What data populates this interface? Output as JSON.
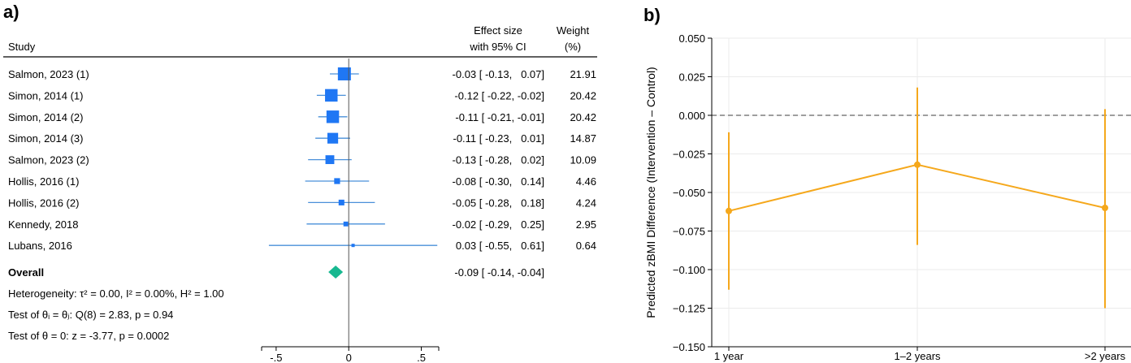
{
  "chart_data": [
    {
      "type": "forest",
      "panel_label": "a)",
      "headers": {
        "study": "Study",
        "effect_line1": "Effect size",
        "effect_line2": "with 95% CI",
        "weight_line1": "Weight",
        "weight_line2": "(%)"
      },
      "studies": [
        {
          "label": "Salmon, 2023 (1)",
          "es": -0.03,
          "lo": -0.13,
          "hi": 0.07,
          "weight": 21.91,
          "es_text": "-0.03 [ -0.13,   0.07]",
          "weight_text": "21.91"
        },
        {
          "label": "Simon, 2014 (1)",
          "es": -0.12,
          "lo": -0.22,
          "hi": -0.02,
          "weight": 20.42,
          "es_text": "-0.12 [ -0.22, -0.02]",
          "weight_text": "20.42"
        },
        {
          "label": "Simon, 2014 (2)",
          "es": -0.11,
          "lo": -0.21,
          "hi": -0.01,
          "weight": 20.42,
          "es_text": "-0.11 [ -0.21, -0.01]",
          "weight_text": "20.42"
        },
        {
          "label": "Simon, 2014 (3)",
          "es": -0.11,
          "lo": -0.23,
          "hi": 0.01,
          "weight": 14.87,
          "es_text": "-0.11 [ -0.23,   0.01]",
          "weight_text": "14.87"
        },
        {
          "label": "Salmon, 2023 (2)",
          "es": -0.13,
          "lo": -0.28,
          "hi": 0.02,
          "weight": 10.09,
          "es_text": "-0.13 [ -0.28,   0.02]",
          "weight_text": "10.09"
        },
        {
          "label": "Hollis, 2016 (1)",
          "es": -0.08,
          "lo": -0.3,
          "hi": 0.14,
          "weight": 4.46,
          "es_text": "-0.08 [ -0.30,   0.14]",
          "weight_text": "4.46"
        },
        {
          "label": "Hollis, 2016 (2)",
          "es": -0.05,
          "lo": -0.28,
          "hi": 0.18,
          "weight": 4.24,
          "es_text": "-0.05 [ -0.28,   0.18]",
          "weight_text": "4.24"
        },
        {
          "label": "Kennedy, 2018",
          "es": -0.02,
          "lo": -0.29,
          "hi": 0.25,
          "weight": 2.95,
          "es_text": "-0.02 [ -0.29,   0.25]",
          "weight_text": "2.95"
        },
        {
          "label": "Lubans, 2016",
          "es": 0.03,
          "lo": -0.55,
          "hi": 0.61,
          "weight": 0.64,
          "es_text": "0.03 [ -0.55,   0.61]",
          "weight_text": "0.64"
        }
      ],
      "overall": {
        "label": "Overall",
        "es": -0.09,
        "lo": -0.14,
        "hi": -0.04,
        "es_text": "-0.09 [ -0.14, -0.04]"
      },
      "notes": {
        "heterogeneity": "Heterogeneity: τ² = 0.00, I² = 0.00%, H² = 1.00",
        "test_equal": "Test of θᵢ = θⱼ: Q(8) = 2.83, p = 0.94",
        "test_zero": "Test of θ = 0: z = -3.77, p = 0.0002"
      },
      "xlim": [
        -0.6,
        0.62
      ],
      "xticks": [
        -0.5,
        0,
        0.5
      ],
      "xtick_labels": [
        "-.5",
        "0",
        ".5"
      ],
      "colors": {
        "study": "#1f77f4",
        "ci_line": "#4a90d9",
        "overall": "#17b890",
        "axis": "#000000"
      }
    },
    {
      "type": "line",
      "panel_label": "b)",
      "categories": [
        "1 year",
        "1–2 years",
        ">2 years"
      ],
      "values": [
        -0.062,
        -0.032,
        -0.06
      ],
      "ci_low": [
        -0.113,
        -0.084,
        -0.125
      ],
      "ci_high": [
        -0.011,
        0.018,
        0.004
      ],
      "ylabel": "Predicted zBMI Difference (Intervention – Control)",
      "xlabel": "",
      "ylim": [
        -0.15,
        0.05
      ],
      "yticks": [
        -0.15,
        -0.125,
        -0.1,
        -0.075,
        -0.05,
        -0.025,
        0.0,
        0.025,
        0.05
      ],
      "ytick_labels": [
        "−0.150",
        "−0.125",
        "−0.100",
        "−0.075",
        "−0.050",
        "−0.025",
        "0.000",
        "0.025",
        "0.050"
      ],
      "reference_line": 0,
      "grid": true,
      "colors": {
        "line": "#f5a81c",
        "reference": "#7f7f7f",
        "grid": "#ebebeb"
      }
    }
  ]
}
